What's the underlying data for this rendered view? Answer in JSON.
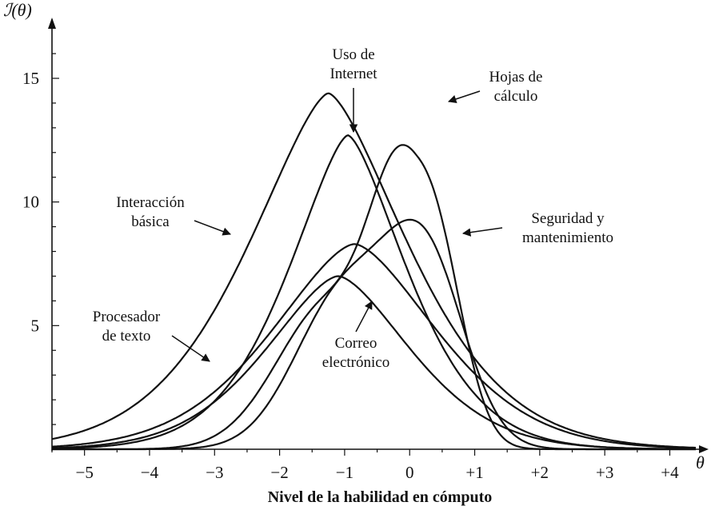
{
  "chart_data": {
    "type": "line",
    "ylabel": "ℐ(θ)",
    "xlabel": "Nivel de la habilidad en cómputo",
    "x_axis_symbol": "θ",
    "xlim": [
      -5.5,
      4.4
    ],
    "ylim": [
      0,
      16
    ],
    "x_ticks": [
      -5,
      -4,
      -3,
      -2,
      -1,
      0,
      1,
      2,
      3,
      4
    ],
    "x_tick_labels": [
      "−5",
      "−4",
      "−3",
      "−2",
      "−1",
      "0",
      "+1",
      "+2",
      "+3",
      "+4"
    ],
    "y_ticks": [
      5,
      10,
      15
    ],
    "y_tick_labels": [
      "5",
      "10",
      "15"
    ],
    "grid": false,
    "legend": "none",
    "series": [
      {
        "name": "Interacción básica",
        "components": [
          {
            "amp": 14.4,
            "mu": -1.25,
            "sigma": 1.15,
            "k": 1.5
          }
        ]
      },
      {
        "name": "Uso de Internet",
        "components": [
          {
            "amp": 12.7,
            "mu": -0.95,
            "sigma": 0.85,
            "k": 1.5
          }
        ]
      },
      {
        "name": "Hojas de cálculo",
        "components": [
          {
            "amp": 10.2,
            "mu": 0.1,
            "sigma": 0.62,
            "k": 2.4
          },
          {
            "amp": 6.0,
            "mu": -1.2,
            "sigma": 0.82,
            "k": 2.0
          }
        ]
      },
      {
        "name": "Seguridad y mantenimiento",
        "components": [
          {
            "amp": 7.3,
            "mu": 0.25,
            "sigma": 0.6,
            "k": 2.0
          },
          {
            "amp": 6.3,
            "mu": -1.0,
            "sigma": 0.75,
            "k": 2.0
          }
        ]
      },
      {
        "name": "Procesador de texto",
        "components": [
          {
            "amp": 8.3,
            "mu": -0.85,
            "sigma": 1.2,
            "k": 1.6
          }
        ]
      },
      {
        "name": "Correo electrónico",
        "components": [
          {
            "amp": 7.0,
            "mu": -1.1,
            "sigma": 1.05,
            "k": 1.6
          }
        ]
      }
    ],
    "annotations": [
      {
        "lines": [
          "Uso de",
          "Internet"
        ],
        "series": "Uso de Internet"
      },
      {
        "lines": [
          "Hojas de",
          "cálculo"
        ],
        "series": "Hojas de cálculo"
      },
      {
        "lines": [
          "Interacción",
          "básica"
        ],
        "series": "Interacción básica"
      },
      {
        "lines": [
          "Seguridad y",
          "mantenimiento"
        ],
        "series": "Seguridad y mantenimiento"
      },
      {
        "lines": [
          "Procesador",
          "de texto"
        ],
        "series": "Procesador de texto"
      },
      {
        "lines": [
          "Correo",
          "electrónico"
        ],
        "series": "Correo electrónico"
      }
    ]
  }
}
